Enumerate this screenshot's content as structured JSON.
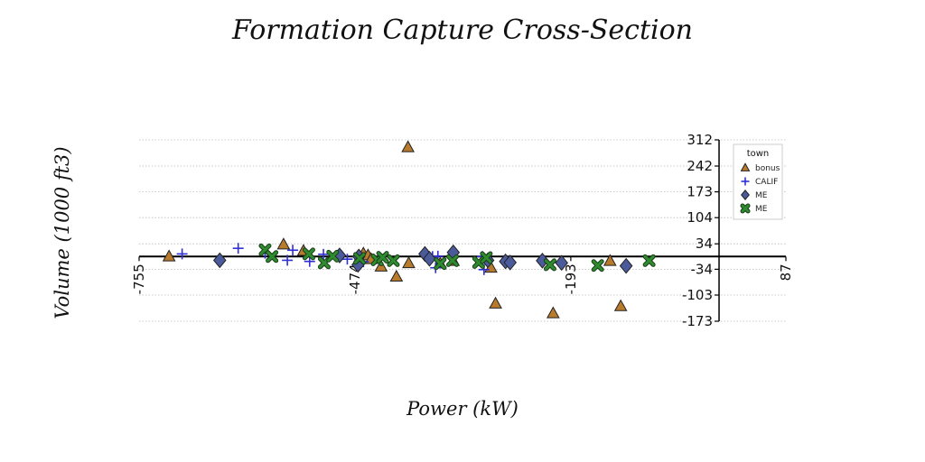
{
  "chart_data": {
    "type": "scatter",
    "title": "Formation Capture Cross-Section",
    "xlabel": "Power (kW)",
    "ylabel": "Volume (1000 ft3)",
    "xlim": [
      -755,
      87
    ],
    "ylim": [
      -173,
      312
    ],
    "x_ticks": [
      {
        "value": -755,
        "label": "-755"
      },
      {
        "value": -474,
        "label": "-474"
      },
      {
        "value": -193,
        "label": "-193"
      },
      {
        "value": 87,
        "label": "87"
      }
    ],
    "y_ticks": [
      {
        "value": 312,
        "label": "312"
      },
      {
        "value": 242,
        "label": "242"
      },
      {
        "value": 173,
        "label": "173"
      },
      {
        "value": 104,
        "label": "104"
      },
      {
        "value": 34,
        "label": "34"
      },
      {
        "value": -34,
        "label": "-34"
      },
      {
        "value": -103,
        "label": "-103"
      },
      {
        "value": -173,
        "label": "-173"
      }
    ],
    "grid": "horizontal dotted",
    "spines": "centered at origin",
    "legend": {
      "title": "town",
      "placement": "top-right"
    },
    "series": [
      {
        "name": "bonus",
        "marker": "triangle",
        "color": "#b87a2b",
        "points": [
          [
            -716,
            0
          ],
          [
            -567,
            32
          ],
          [
            -541,
            15
          ],
          [
            -463,
            8
          ],
          [
            -457,
            3
          ],
          [
            -453,
            -7
          ],
          [
            -440,
            -27
          ],
          [
            -420,
            -54
          ],
          [
            -405,
            292
          ],
          [
            -404,
            -18
          ],
          [
            -363,
            -19
          ],
          [
            -346,
            -12
          ],
          [
            -297,
            -30
          ],
          [
            -291,
            -126
          ],
          [
            -216,
            -152
          ],
          [
            -142,
            -12
          ],
          [
            -128,
            -133
          ]
        ]
      },
      {
        "name": "CALIF",
        "marker": "plus",
        "color": "#2f2fd6",
        "points": [
          [
            -699,
            7
          ],
          [
            -626,
            22
          ],
          [
            -591,
            9
          ],
          [
            -562,
            -10
          ],
          [
            -555,
            17
          ],
          [
            -533,
            -13
          ],
          [
            -515,
            6
          ],
          [
            -484,
            -7
          ],
          [
            -463,
            -14
          ],
          [
            -373,
            0
          ],
          [
            -369,
            -30
          ],
          [
            -366,
            1
          ],
          [
            -308,
            0
          ],
          [
            -306,
            -35
          ]
        ]
      },
      {
        "name": "ME",
        "marker": "diamond",
        "color": "#4a5a9a",
        "points": [
          [
            -650,
            -10
          ],
          [
            -494,
            3
          ],
          [
            -469,
            0
          ],
          [
            -470,
            -22
          ],
          [
            -383,
            7
          ],
          [
            -377,
            -6
          ],
          [
            -346,
            11
          ],
          [
            -301,
            -10
          ],
          [
            -278,
            -13
          ],
          [
            -272,
            -16
          ],
          [
            -230,
            -11
          ],
          [
            -205,
            -17
          ],
          [
            -121,
            -25
          ]
        ]
      },
      {
        "name": "ME",
        "marker": "x",
        "color": "#2e8b2e",
        "points": [
          [
            -591,
            18
          ],
          [
            -582,
            0
          ],
          [
            -534,
            7
          ],
          [
            -514,
            -17
          ],
          [
            -503,
            1
          ],
          [
            -468,
            -5
          ],
          [
            -445,
            -9
          ],
          [
            -438,
            -2
          ],
          [
            -424,
            -11
          ],
          [
            -363,
            -19
          ],
          [
            -347,
            -11
          ],
          [
            -313,
            -16
          ],
          [
            -303,
            -3
          ],
          [
            -220,
            -22
          ],
          [
            -158,
            -24
          ],
          [
            -91,
            -11
          ]
        ]
      }
    ]
  }
}
